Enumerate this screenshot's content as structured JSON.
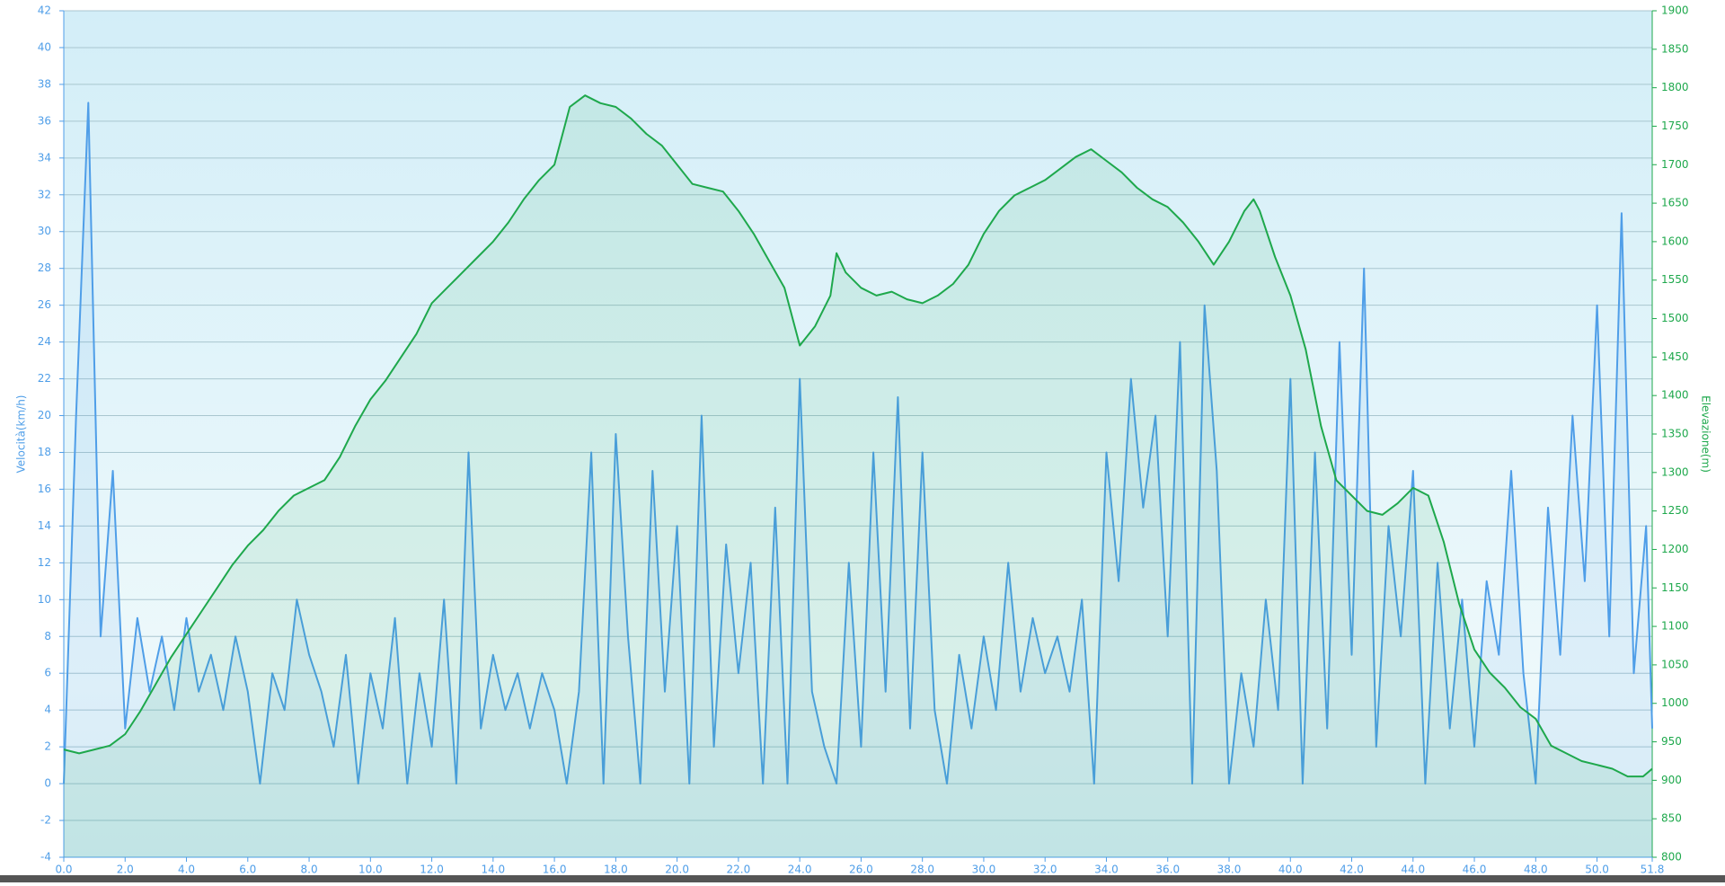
{
  "chart_data": {
    "type": "line",
    "y_label": "Velocità(km/h)",
    "y2_label": "Elevazione(m)",
    "xlim": [
      0,
      51.8
    ],
    "ylim": [
      -4,
      42
    ],
    "y2lim": [
      800,
      1900
    ],
    "grid": true,
    "xticks": [
      {
        "value": 0,
        "label": "0.0"
      },
      {
        "value": 2,
        "label": "2.0"
      },
      {
        "value": 4,
        "label": "4.0"
      },
      {
        "value": 6,
        "label": "6.0"
      },
      {
        "value": 8,
        "label": "8.0"
      },
      {
        "value": 10,
        "label": "10.0"
      },
      {
        "value": 12,
        "label": "12.0"
      },
      {
        "value": 14,
        "label": "14.0"
      },
      {
        "value": 16,
        "label": "16.0"
      },
      {
        "value": 18,
        "label": "18.0"
      },
      {
        "value": 20,
        "label": "20.0"
      },
      {
        "value": 22,
        "label": "22.0"
      },
      {
        "value": 24,
        "label": "24.0"
      },
      {
        "value": 26,
        "label": "26.0"
      },
      {
        "value": 28,
        "label": "28.0"
      },
      {
        "value": 30,
        "label": "30.0"
      },
      {
        "value": 32,
        "label": "32.0"
      },
      {
        "value": 34,
        "label": "34.0"
      },
      {
        "value": 36,
        "label": "36.0"
      },
      {
        "value": 38,
        "label": "38.0"
      },
      {
        "value": 40,
        "label": "40.0"
      },
      {
        "value": 42,
        "label": "42.0"
      },
      {
        "value": 44,
        "label": "44.0"
      },
      {
        "value": 46,
        "label": "46.0"
      },
      {
        "value": 48,
        "label": "48.0"
      },
      {
        "value": 50,
        "label": "50.0"
      },
      {
        "value": 51.8,
        "label": "51.8"
      }
    ],
    "yticks": [
      -4,
      -2,
      0,
      2,
      4,
      6,
      8,
      10,
      12,
      14,
      16,
      18,
      20,
      22,
      24,
      26,
      28,
      30,
      32,
      34,
      36,
      38,
      40,
      42
    ],
    "y2ticks": [
      800,
      850,
      900,
      950,
      1000,
      1050,
      1100,
      1150,
      1200,
      1250,
      1300,
      1350,
      1400,
      1450,
      1500,
      1550,
      1600,
      1650,
      1700,
      1750,
      1800,
      1850,
      1900
    ],
    "series": [
      {
        "name": "Elevazione",
        "axis": "y2",
        "color": "#1ea84c",
        "x": [
          0,
          0.5,
          1,
          1.5,
          2,
          2.5,
          3,
          3.5,
          4,
          4.5,
          5,
          5.5,
          6,
          6.5,
          7,
          7.5,
          8,
          8.5,
          9,
          9.5,
          10,
          10.5,
          11,
          11.5,
          12,
          12.5,
          13,
          13.5,
          14,
          14.5,
          15,
          15.5,
          16,
          16.5,
          17,
          17.5,
          18,
          18.5,
          19,
          19.5,
          20,
          20.5,
          21,
          21.5,
          22,
          22.5,
          23,
          23.5,
          24,
          24.5,
          25,
          25.2,
          25.5,
          26,
          26.5,
          27,
          27.5,
          28,
          28.5,
          29,
          29.5,
          30,
          30.5,
          31,
          31.5,
          32,
          32.5,
          33,
          33.5,
          34,
          34.5,
          35,
          35.5,
          36,
          36.5,
          37,
          37.5,
          38,
          38.5,
          38.8,
          39,
          39.5,
          40,
          40.5,
          41,
          41.5,
          42,
          42.5,
          43,
          43.5,
          44,
          44.5,
          45,
          45.5,
          46,
          46.5,
          47,
          47.5,
          48,
          48.5,
          49,
          49.5,
          50,
          50.5,
          51,
          51.5,
          51.8
        ],
        "values": [
          940,
          935,
          940,
          945,
          960,
          990,
          1025,
          1060,
          1090,
          1120,
          1150,
          1180,
          1205,
          1225,
          1250,
          1270,
          1280,
          1290,
          1320,
          1360,
          1395,
          1420,
          1450,
          1480,
          1520,
          1540,
          1560,
          1580,
          1600,
          1625,
          1655,
          1680,
          1700,
          1775,
          1790,
          1780,
          1775,
          1760,
          1740,
          1725,
          1700,
          1675,
          1670,
          1665,
          1640,
          1610,
          1575,
          1540,
          1465,
          1490,
          1530,
          1585,
          1560,
          1540,
          1530,
          1535,
          1525,
          1520,
          1530,
          1545,
          1570,
          1610,
          1640,
          1660,
          1670,
          1680,
          1695,
          1710,
          1720,
          1705,
          1690,
          1670,
          1655,
          1645,
          1625,
          1600,
          1570,
          1600,
          1640,
          1655,
          1640,
          1580,
          1530,
          1460,
          1360,
          1290,
          1270,
          1250,
          1245,
          1260,
          1280,
          1270,
          1210,
          1130,
          1070,
          1040,
          1020,
          995,
          980,
          945,
          935,
          925,
          920,
          915,
          905,
          905,
          915
        ]
      },
      {
        "name": "Velocità",
        "axis": "y",
        "color": "#4f9ee8",
        "x": [
          0,
          0.4,
          0.8,
          1.2,
          1.6,
          2,
          2.4,
          2.8,
          3.2,
          3.6,
          4,
          4.4,
          4.8,
          5.2,
          5.6,
          6,
          6.4,
          6.8,
          7.2,
          7.6,
          8,
          8.4,
          8.8,
          9.2,
          9.6,
          10,
          10.4,
          10.8,
          11.2,
          11.6,
          12,
          12.4,
          12.8,
          13.2,
          13.6,
          14,
          14.4,
          14.8,
          15.2,
          15.6,
          16,
          16.4,
          16.8,
          17.2,
          17.6,
          18,
          18.4,
          18.8,
          19.2,
          19.6,
          20,
          20.4,
          20.8,
          21.2,
          21.6,
          22,
          22.4,
          22.8,
          23.2,
          23.6,
          24,
          24.4,
          24.8,
          25.2,
          25.6,
          26,
          26.4,
          26.8,
          27.2,
          27.6,
          28,
          28.4,
          28.8,
          29.2,
          29.6,
          30,
          30.4,
          30.8,
          31.2,
          31.6,
          32,
          32.4,
          32.8,
          33.2,
          33.6,
          34,
          34.4,
          34.8,
          35.2,
          35.6,
          36,
          36.4,
          36.8,
          37.2,
          37.6,
          38,
          38.4,
          38.8,
          39.2,
          39.6,
          40,
          40.4,
          40.8,
          41.2,
          41.6,
          42,
          42.4,
          42.8,
          43.2,
          43.6,
          44,
          44.4,
          44.8,
          45.2,
          45.6,
          46,
          46.4,
          46.8,
          47.2,
          47.6,
          48,
          48.4,
          48.8,
          49.2,
          49.6,
          50,
          50.4,
          50.8,
          51.2,
          51.6,
          51.8
        ],
        "values": [
          0,
          20,
          37,
          8,
          17,
          3,
          9,
          5,
          8,
          4,
          9,
          5,
          7,
          4,
          8,
          5,
          0,
          6,
          4,
          10,
          7,
          5,
          2,
          7,
          0,
          6,
          3,
          9,
          0,
          6,
          2,
          10,
          0,
          18,
          3,
          7,
          4,
          6,
          3,
          6,
          4,
          0,
          5,
          18,
          0,
          19,
          8,
          0,
          17,
          5,
          14,
          0,
          20,
          2,
          13,
          6,
          12,
          0,
          15,
          0,
          22,
          5,
          2,
          0,
          12,
          2,
          18,
          5,
          21,
          3,
          18,
          4,
          0,
          7,
          3,
          8,
          4,
          12,
          5,
          9,
          6,
          8,
          5,
          10,
          0,
          18,
          11,
          22,
          15,
          20,
          8,
          24,
          0,
          26,
          17,
          0,
          6,
          2,
          10,
          4,
          22,
          0,
          18,
          3,
          24,
          7,
          28,
          2,
          14,
          8,
          17,
          0,
          12,
          3,
          10,
          2,
          11,
          7,
          17,
          6,
          0,
          15,
          7,
          20,
          11,
          26,
          8,
          31,
          6,
          14,
          3
        ]
      }
    ]
  }
}
